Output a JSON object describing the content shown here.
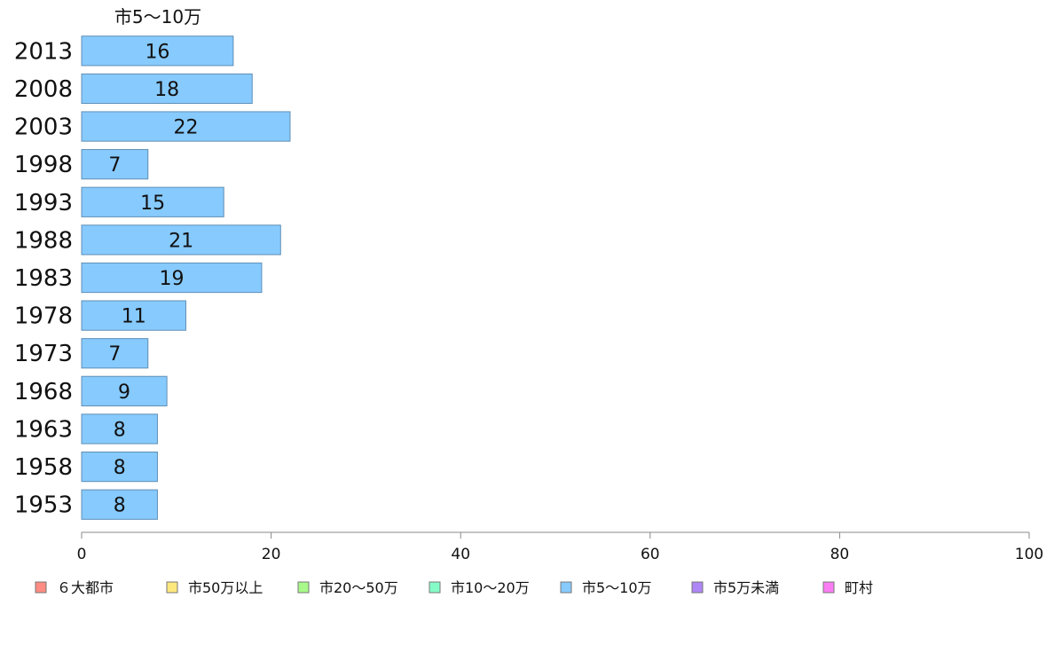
{
  "chart_data": {
    "type": "bar",
    "orientation": "horizontal",
    "categories": [
      "2013",
      "2008",
      "2003",
      "1998",
      "1993",
      "1988",
      "1983",
      "1978",
      "1973",
      "1968",
      "1963",
      "1958",
      "1953"
    ],
    "series": [
      {
        "name": "市5〜10万",
        "color": "#87cafe",
        "values": [
          16,
          18,
          22,
          7,
          15,
          21,
          19,
          11,
          7,
          9,
          8,
          8,
          8
        ]
      }
    ],
    "xlim": [
      0,
      100
    ],
    "xticks": [
      "0",
      "20",
      "40",
      "60",
      "80",
      "100"
    ],
    "series_title": "市5〜10万",
    "legend": {
      "placement": "bottom",
      "items": [
        {
          "label": "６大都市",
          "color": "#fe8c82"
        },
        {
          "label": "市50万以上",
          "color": "#fde87e"
        },
        {
          "label": "市20〜50万",
          "color": "#a8f98a"
        },
        {
          "label": "市10〜20万",
          "color": "#85fcc8"
        },
        {
          "label": "市5〜10万",
          "color": "#87cafe"
        },
        {
          "label": "市5万未満",
          "color": "#ae86f5"
        },
        {
          "label": "町村",
          "color": "#f97cf2"
        }
      ]
    }
  }
}
